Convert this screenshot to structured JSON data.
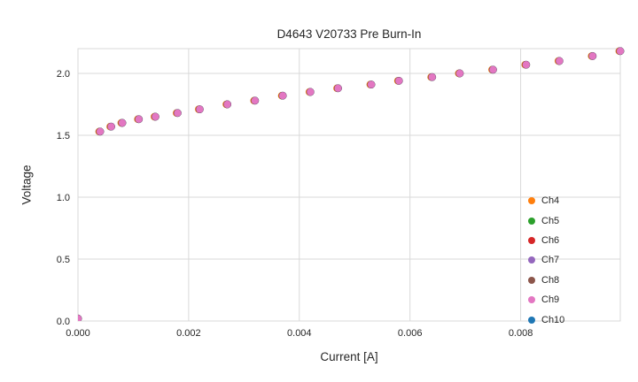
{
  "chart_data": {
    "type": "scatter",
    "title": "D4643 V20733 Pre Burn-In",
    "xlabel": "Current [A]",
    "ylabel": "Voltage",
    "xlim": [
      0.0,
      0.0098
    ],
    "ylim": [
      0.0,
      2.2
    ],
    "grid": true,
    "grid_color": "#d9d9d9",
    "background_color": "#ffffff",
    "legend_position": "lower right",
    "xticks": {
      "values": [
        0.0,
        0.002,
        0.004,
        0.006,
        0.008
      ],
      "labels": [
        "0.000",
        "0.002",
        "0.004",
        "0.006",
        "0.008"
      ]
    },
    "yticks": {
      "values": [
        0.0,
        0.5,
        1.0,
        1.5,
        2.0
      ],
      "labels": [
        "0.0",
        "0.5",
        "1.0",
        "1.5",
        "2.0"
      ]
    },
    "x": [
      0.0,
      0.0004,
      0.0006,
      0.0008,
      0.0011,
      0.0014,
      0.0018,
      0.0022,
      0.0027,
      0.0032,
      0.0037,
      0.0042,
      0.0047,
      0.0053,
      0.0058,
      0.0064,
      0.0069,
      0.0075,
      0.0081,
      0.0087,
      0.0093,
      0.0098
    ],
    "series": [
      {
        "name": "Ch4",
        "color": "#ff7f0e",
        "y": [
          0.02,
          1.53,
          1.57,
          1.6,
          1.63,
          1.65,
          1.68,
          1.71,
          1.75,
          1.78,
          1.82,
          1.85,
          1.88,
          1.91,
          1.94,
          1.97,
          2.0,
          2.03,
          2.07,
          2.1,
          2.14,
          2.18
        ]
      },
      {
        "name": "Ch5",
        "color": "#2ca02c",
        "y": [
          0.02,
          1.53,
          1.57,
          1.6,
          1.63,
          1.65,
          1.68,
          1.71,
          1.75,
          1.78,
          1.82,
          1.85,
          1.88,
          1.91,
          1.94,
          1.97,
          2.0,
          2.03,
          2.07,
          2.1,
          2.14,
          2.18
        ]
      },
      {
        "name": "Ch6",
        "color": "#d62728",
        "y": [
          0.02,
          1.53,
          1.57,
          1.6,
          1.63,
          1.65,
          1.68,
          1.71,
          1.75,
          1.78,
          1.82,
          1.85,
          1.88,
          1.91,
          1.94,
          1.97,
          2.0,
          2.03,
          2.07,
          2.1,
          2.14,
          2.18
        ]
      },
      {
        "name": "Ch7",
        "color": "#9467bd",
        "y": [
          0.02,
          1.53,
          1.57,
          1.6,
          1.63,
          1.65,
          1.68,
          1.71,
          1.75,
          1.78,
          1.82,
          1.85,
          1.88,
          1.91,
          1.94,
          1.97,
          2.0,
          2.03,
          2.07,
          2.1,
          2.14,
          2.18
        ]
      },
      {
        "name": "Ch8",
        "color": "#8c564b",
        "y": [
          0.02,
          1.53,
          1.57,
          1.6,
          1.63,
          1.65,
          1.68,
          1.71,
          1.75,
          1.78,
          1.82,
          1.85,
          1.88,
          1.91,
          1.94,
          1.97,
          2.0,
          2.03,
          2.07,
          2.1,
          2.14,
          2.18
        ]
      },
      {
        "name": "Ch9",
        "color": "#e377c2",
        "y": [
          0.02,
          1.53,
          1.57,
          1.6,
          1.63,
          1.65,
          1.68,
          1.71,
          1.75,
          1.78,
          1.82,
          1.85,
          1.88,
          1.91,
          1.94,
          1.97,
          2.0,
          2.03,
          2.07,
          2.1,
          2.14,
          2.18
        ]
      },
      {
        "name": "Ch10",
        "color": "#1f77b4",
        "y": [
          0.02,
          1.53,
          1.57,
          1.6,
          1.63,
          1.65,
          1.68,
          1.71,
          1.75,
          1.78,
          1.82,
          1.85,
          1.88,
          1.91,
          1.94,
          1.97,
          2.0,
          2.03,
          2.07,
          2.1,
          2.14,
          2.18
        ]
      }
    ],
    "draw_order": [
      "Ch4",
      "Ch5",
      "Ch6",
      "Ch7",
      "Ch8",
      "Ch10",
      "Ch9"
    ]
  }
}
